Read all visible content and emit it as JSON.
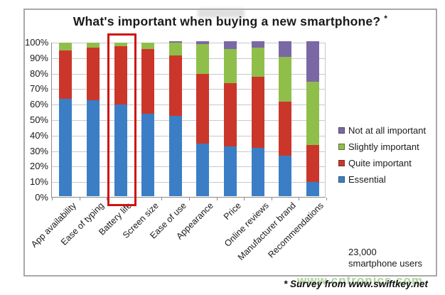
{
  "title": "What's important when buying a new smartphone?",
  "title_asterisk": "*",
  "chart_data": {
    "type": "bar",
    "stacked": true,
    "title": "What's important when buying a new smartphone? *",
    "categories": [
      "App availability",
      "Ease of typing",
      "Battery life",
      "Screen size",
      "Ease of use",
      "Appearance",
      "Price",
      "Online reviews",
      "Manufacturer brand",
      "Recommendations"
    ],
    "series": [
      {
        "name": "Essential",
        "color": "#3b7ec6",
        "values": [
          63,
          62,
          59,
          53,
          52,
          34,
          32,
          31,
          26,
          9
        ]
      },
      {
        "name": "Quite important",
        "color": "#cb362a",
        "values": [
          31,
          34,
          38,
          42,
          39,
          45,
          41,
          46,
          35,
          24
        ]
      },
      {
        "name": "Slightly important",
        "color": "#8fbf4a",
        "values": [
          5,
          3,
          2,
          4,
          8,
          19,
          22,
          19,
          29,
          41
        ]
      },
      {
        "name": "Not at all important",
        "color": "#7a68a5",
        "values": [
          0,
          0,
          0,
          0,
          1,
          2,
          5,
          4,
          10,
          26
        ]
      }
    ],
    "y_ticks": [
      "100%",
      "90%",
      "80%",
      "70%",
      "60%",
      "50%",
      "40%",
      "30%",
      "20%",
      "10%",
      "0%"
    ],
    "ylim": [
      0,
      100
    ],
    "grid": true,
    "legend_position": "right",
    "highlighted_category": "Battery life"
  },
  "legend": {
    "items": [
      {
        "label": "Not at all important",
        "color": "#7a68a5"
      },
      {
        "label": "Slightly important",
        "color": "#8fbf4a"
      },
      {
        "label": "Quite important",
        "color": "#cb362a"
      },
      {
        "label": "Essential",
        "color": "#3b7ec6"
      }
    ]
  },
  "notes": {
    "sample": "23,000\nsmartphone users",
    "source": "* Survey from www.swiftkey.net",
    "watermark": "www.cntronics.com"
  }
}
